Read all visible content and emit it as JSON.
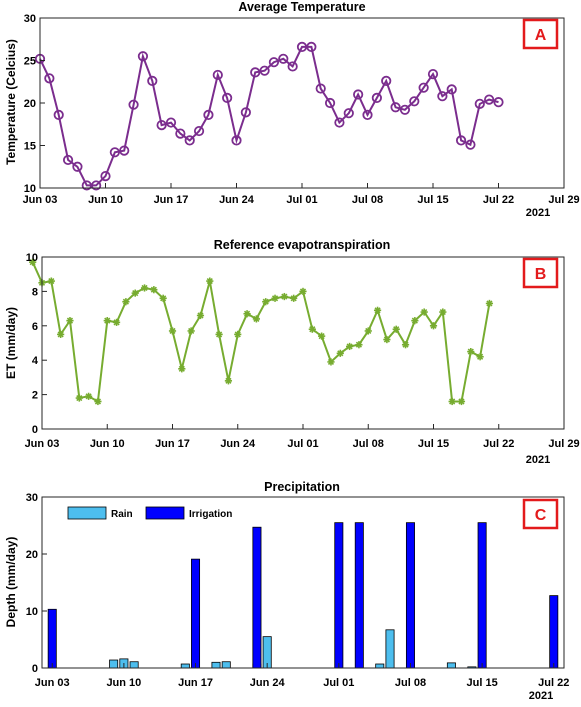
{
  "chart_data": [
    {
      "type": "line",
      "title": "Average Temperature",
      "ylabel": "Temperature (Celcius)",
      "xlabel": "",
      "year_label": "2021",
      "panel_label": "A",
      "ylim": [
        10,
        30
      ],
      "yticks": [
        "10",
        "15",
        "20",
        "25",
        "30"
      ],
      "xlim": [
        "2021-06-03",
        "2021-07-29"
      ],
      "xticks": [
        {
          "date": "2021-06-03",
          "label": "Jun 03"
        },
        {
          "date": "2021-06-10",
          "label": "Jun 10"
        },
        {
          "date": "2021-06-17",
          "label": "Jun 17"
        },
        {
          "date": "2021-06-24",
          "label": "Jun 24"
        },
        {
          "date": "2021-07-01",
          "label": "Jul 01"
        },
        {
          "date": "2021-07-08",
          "label": "Jul 08"
        },
        {
          "date": "2021-07-15",
          "label": "Jul 15"
        },
        {
          "date": "2021-07-22",
          "label": "Jul 22"
        },
        {
          "date": "2021-07-29",
          "label": "Jul 29"
        }
      ],
      "color": "#7b2d8e",
      "marker": "circle",
      "series": [
        {
          "x": [
            "2021-06-03",
            "2021-06-04",
            "2021-06-05",
            "2021-06-06",
            "2021-06-07",
            "2021-06-08",
            "2021-06-09",
            "2021-06-10",
            "2021-06-11",
            "2021-06-12",
            "2021-06-13",
            "2021-06-14",
            "2021-06-15",
            "2021-06-16",
            "2021-06-17",
            "2021-06-18",
            "2021-06-19",
            "2021-06-20",
            "2021-06-21",
            "2021-06-22",
            "2021-06-23",
            "2021-06-24",
            "2021-06-25",
            "2021-06-26",
            "2021-06-27",
            "2021-06-28",
            "2021-06-29",
            "2021-06-30",
            "2021-07-01",
            "2021-07-02",
            "2021-07-03",
            "2021-07-04",
            "2021-07-05",
            "2021-07-06",
            "2021-07-07",
            "2021-07-08",
            "2021-07-09",
            "2021-07-10",
            "2021-07-11",
            "2021-07-12",
            "2021-07-13",
            "2021-07-14",
            "2021-07-15",
            "2021-07-16",
            "2021-07-17",
            "2021-07-18",
            "2021-07-19",
            "2021-07-20",
            "2021-07-21",
            "2021-07-22"
          ],
          "values": [
            25.2,
            22.9,
            18.6,
            13.3,
            12.5,
            10.3,
            10.3,
            11.4,
            14.2,
            14.4,
            19.8,
            25.5,
            22.6,
            17.4,
            17.7,
            16.4,
            15.6,
            16.7,
            18.6,
            23.3,
            20.6,
            15.6,
            18.9,
            23.6,
            23.8,
            24.8,
            25.2,
            24.3,
            26.6,
            26.6,
            21.7,
            20.0,
            17.7,
            18.8,
            21.0,
            18.6,
            20.6,
            22.6,
            19.5,
            19.2,
            20.2,
            21.8,
            23.4,
            20.8,
            21.6,
            15.6,
            15.1,
            19.9,
            20.4,
            20.1
          ]
        }
      ]
    },
    {
      "type": "line",
      "title": "Reference evapotranspiration",
      "ylabel": "ET (mm/day)",
      "xlabel": "",
      "year_label": "2021",
      "panel_label": "B",
      "ylim": [
        0,
        10
      ],
      "yticks": [
        "0",
        "2",
        "4",
        "6",
        "8",
        "10"
      ],
      "xlim": [
        "2021-06-03",
        "2021-07-29"
      ],
      "xticks": [
        {
          "date": "2021-06-03",
          "label": "Jun 03"
        },
        {
          "date": "2021-06-10",
          "label": "Jun 10"
        },
        {
          "date": "2021-06-17",
          "label": "Jun 17"
        },
        {
          "date": "2021-06-24",
          "label": "Jun 24"
        },
        {
          "date": "2021-07-01",
          "label": "Jul 01"
        },
        {
          "date": "2021-07-08",
          "label": "Jul 08"
        },
        {
          "date": "2021-07-15",
          "label": "Jul 15"
        },
        {
          "date": "2021-07-22",
          "label": "Jul 22"
        },
        {
          "date": "2021-07-29",
          "label": "Jul 29"
        }
      ],
      "color": "#77ac30",
      "marker": "asterisk",
      "series": [
        {
          "x": [
            "2021-06-02",
            "2021-06-03",
            "2021-06-04",
            "2021-06-05",
            "2021-06-06",
            "2021-06-07",
            "2021-06-08",
            "2021-06-09",
            "2021-06-10",
            "2021-06-11",
            "2021-06-12",
            "2021-06-13",
            "2021-06-14",
            "2021-06-15",
            "2021-06-16",
            "2021-06-17",
            "2021-06-18",
            "2021-06-19",
            "2021-06-20",
            "2021-06-21",
            "2021-06-22",
            "2021-06-23",
            "2021-06-24",
            "2021-06-25",
            "2021-06-26",
            "2021-06-27",
            "2021-06-28",
            "2021-06-29",
            "2021-06-30",
            "2021-07-01",
            "2021-07-02",
            "2021-07-03",
            "2021-07-04",
            "2021-07-05",
            "2021-07-06",
            "2021-07-07",
            "2021-07-08",
            "2021-07-09",
            "2021-07-10",
            "2021-07-11",
            "2021-07-12",
            "2021-07-13",
            "2021-07-14",
            "2021-07-15",
            "2021-07-16",
            "2021-07-17",
            "2021-07-18",
            "2021-07-19",
            "2021-07-20",
            "2021-07-21",
            "2021-07-22"
          ],
          "values": [
            9.7,
            8.5,
            8.6,
            5.5,
            6.3,
            1.8,
            1.9,
            1.6,
            6.3,
            6.2,
            7.4,
            7.9,
            8.2,
            8.1,
            7.6,
            5.7,
            3.5,
            5.7,
            6.6,
            8.6,
            5.5,
            2.8,
            5.5,
            6.7,
            6.4,
            7.4,
            7.6,
            7.7,
            7.6,
            8.0,
            5.8,
            5.4,
            3.9,
            4.4,
            4.8,
            4.9,
            5.7,
            6.9,
            5.2,
            5.8,
            4.9,
            6.3,
            6.8,
            6.0,
            6.8,
            1.6,
            1.6,
            4.5,
            4.2,
            7.3,
            null
          ]
        }
      ]
    },
    {
      "type": "bar",
      "title": "Precipitation",
      "ylabel": "Depth (mm/day)",
      "xlabel": "",
      "year_label": "2021",
      "panel_label": "C",
      "ylim": [
        0,
        30
      ],
      "yticks": [
        "0",
        "10",
        "20",
        "30"
      ],
      "xlim": [
        "2021-06-02",
        "2021-07-23"
      ],
      "xticks": [
        {
          "date": "2021-06-03",
          "label": "Jun 03"
        },
        {
          "date": "2021-06-10",
          "label": "Jun 10"
        },
        {
          "date": "2021-06-17",
          "label": "Jun 17"
        },
        {
          "date": "2021-06-24",
          "label": "Jun 24"
        },
        {
          "date": "2021-07-01",
          "label": "Jul 01"
        },
        {
          "date": "2021-07-08",
          "label": "Jul 08"
        },
        {
          "date": "2021-07-15",
          "label": "Jul 15"
        },
        {
          "date": "2021-07-22",
          "label": "Jul 22"
        }
      ],
      "legend_position": "top-left",
      "series": [
        {
          "name": "Rain",
          "color": "#4dbeee",
          "x": [
            "2021-06-09",
            "2021-06-10",
            "2021-06-11",
            "2021-06-16",
            "2021-06-19",
            "2021-06-20",
            "2021-06-23",
            "2021-06-24",
            "2021-07-05",
            "2021-07-06",
            "2021-07-12",
            "2021-07-14"
          ],
          "values": [
            1.4,
            1.6,
            1.1,
            0.7,
            1.0,
            1.1,
            0.7,
            5.5,
            0.7,
            6.7,
            0.9,
            0.2
          ]
        },
        {
          "name": "Irrigation",
          "color": "#0000ff",
          "x": [
            "2021-06-03",
            "2021-06-17",
            "2021-06-23",
            "2021-07-01",
            "2021-07-03",
            "2021-07-08",
            "2021-07-15",
            "2021-07-22"
          ],
          "values": [
            10.3,
            19.1,
            24.7,
            25.5,
            25.5,
            25.5,
            25.5,
            12.7
          ]
        }
      ]
    }
  ]
}
